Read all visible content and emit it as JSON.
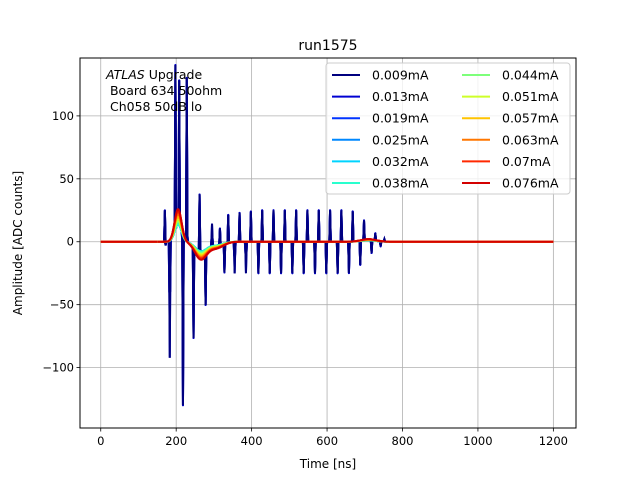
{
  "chart_data": {
    "type": "line",
    "title": "run1575",
    "xlabel": "Time [ns]",
    "ylabel": "Amplitude [ADC counts]",
    "xlim": [
      -55,
      1260
    ],
    "ylim": [
      -148,
      146
    ],
    "xticks": [
      0,
      200,
      400,
      600,
      800,
      1000,
      1200
    ],
    "xtick_labels": [
      "0",
      "200",
      "400",
      "600",
      "800",
      "1000",
      "1200"
    ],
    "yticks": [
      -100,
      -50,
      0,
      50,
      100
    ],
    "ytick_labels": [
      "−100",
      "−50",
      "0",
      "50",
      "100"
    ],
    "grid": true,
    "legend_position": "top-right",
    "legend_columns": 2,
    "annotation": {
      "italic": "ATLAS",
      "rest": " Upgrade",
      "line2": " Board 634 50ohm",
      "line3": " Ch058 50dB lo"
    },
    "series": [
      {
        "name": "0.009mA",
        "color": "#00007f",
        "peak": 14
      },
      {
        "name": "0.013mA",
        "color": "#0000d2",
        "peak": 14
      },
      {
        "name": "0.019mA",
        "color": "#0034ff",
        "peak": 14
      },
      {
        "name": "0.025mA",
        "color": "#0088ff",
        "peak": 14
      },
      {
        "name": "0.032mA",
        "color": "#00d4ff",
        "peak": 14
      },
      {
        "name": "0.038mA",
        "color": "#29ffce",
        "peak": 14
      },
      {
        "name": "0.044mA",
        "color": "#7dff7a",
        "peak": 16
      },
      {
        "name": "0.051mA",
        "color": "#ceff29",
        "peak": 18
      },
      {
        "name": "0.057mA",
        "color": "#ffc400",
        "peak": 20
      },
      {
        "name": "0.063mA",
        "color": "#ff7700",
        "peak": 22
      },
      {
        "name": "0.07mA",
        "color": "#ff2900",
        "peak": 24
      },
      {
        "name": "0.076mA",
        "color": "#d30000",
        "peak": 26
      }
    ],
    "noise_spikes": [
      {
        "t": 170,
        "v": 25
      },
      {
        "t": 172,
        "v": -3
      },
      {
        "t": 183,
        "v": -93
      },
      {
        "t": 198,
        "v": 130
      },
      {
        "t": 208,
        "v": 115
      },
      {
        "t": 218,
        "v": -135
      },
      {
        "t": 228,
        "v": 130
      },
      {
        "t": 246,
        "v": -73
      },
      {
        "t": 262,
        "v": 45
      },
      {
        "t": 278,
        "v": -44
      },
      {
        "t": 295,
        "v": 18
      },
      {
        "t": 316,
        "v": 13
      },
      {
        "t": 328,
        "v": -23
      },
      {
        "t": 338,
        "v": 22
      },
      {
        "t": 355,
        "v": -25
      },
      {
        "t": 368,
        "v": 23
      },
      {
        "t": 385,
        "v": -25
      },
      {
        "t": 398,
        "v": 24
      },
      {
        "t": 418,
        "v": -25
      },
      {
        "t": 428,
        "v": 25
      },
      {
        "t": 448,
        "v": -25
      },
      {
        "t": 458,
        "v": 25
      },
      {
        "t": 478,
        "v": -25
      },
      {
        "t": 488,
        "v": 25
      },
      {
        "t": 508,
        "v": -25
      },
      {
        "t": 518,
        "v": 25
      },
      {
        "t": 538,
        "v": -25
      },
      {
        "t": 548,
        "v": 25
      },
      {
        "t": 568,
        "v": -25
      },
      {
        "t": 578,
        "v": 25
      },
      {
        "t": 598,
        "v": -25
      },
      {
        "t": 608,
        "v": 25
      },
      {
        "t": 628,
        "v": -25
      },
      {
        "t": 638,
        "v": 25
      },
      {
        "t": 658,
        "v": -25
      },
      {
        "t": 668,
        "v": 24
      },
      {
        "t": 688,
        "v": -19
      },
      {
        "t": 698,
        "v": 16
      },
      {
        "t": 718,
        "v": -10
      },
      {
        "t": 728,
        "v": 6
      },
      {
        "t": 742,
        "v": -4
      },
      {
        "t": 752,
        "v": 2
      }
    ]
  }
}
